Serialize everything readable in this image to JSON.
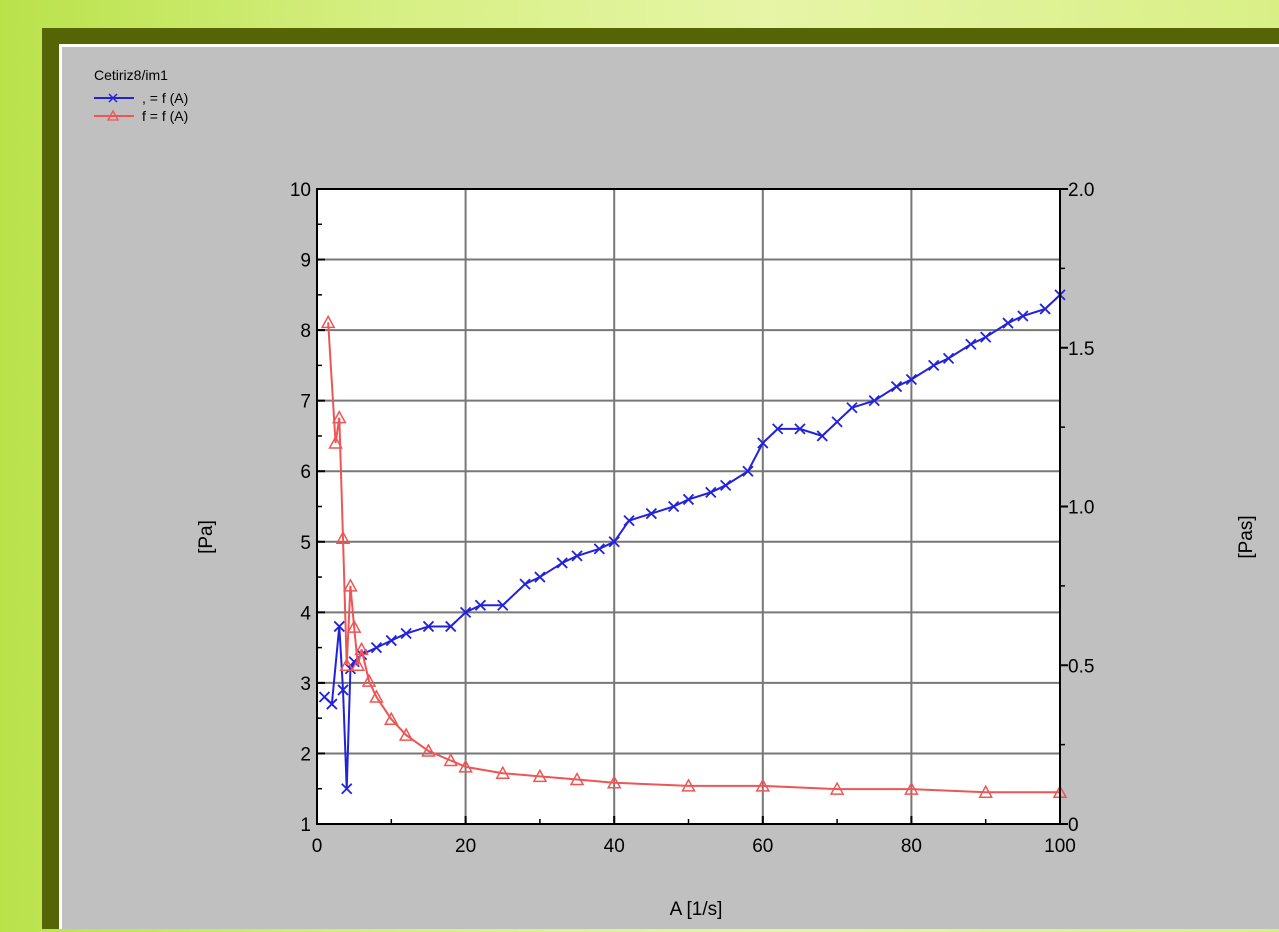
{
  "chart_data": {
    "type": "line",
    "title": "Cetiriz8/im1",
    "xlabel": "A [1/s]",
    "ylabel_left": "[Pa]",
    "ylabel_right": "[Pas]",
    "xlim": [
      0,
      100
    ],
    "ylim_left": [
      1,
      10
    ],
    "ylim_right": [
      0,
      2.0
    ],
    "x_ticks": [
      "0",
      "20",
      "40",
      "60",
      "80",
      "100"
    ],
    "y_left_ticks": [
      "1",
      "2",
      "3",
      "4",
      "5",
      "6",
      "7",
      "8",
      "9",
      "10"
    ],
    "y_right_ticks": [
      "0",
      "0.5",
      "1.0",
      "1.5",
      "2.0"
    ],
    "grid": true,
    "legend_position": "top-left",
    "series": [
      {
        "name": ", = f (A)",
        "axis": "left",
        "color": "#2222dd",
        "marker": "x",
        "x": [
          1,
          2,
          3,
          3.5,
          4,
          4.5,
          5,
          6,
          8,
          10,
          12,
          15,
          18,
          20,
          22,
          25,
          28,
          30,
          33,
          35,
          38,
          40,
          42,
          45,
          48,
          50,
          53,
          55,
          58,
          60,
          62,
          65,
          68,
          70,
          72,
          75,
          78,
          80,
          83,
          85,
          88,
          90,
          93,
          95,
          98,
          100
        ],
        "values": [
          2.8,
          2.7,
          3.8,
          2.9,
          1.5,
          3.2,
          3.3,
          3.4,
          3.5,
          3.6,
          3.7,
          3.8,
          3.8,
          4.0,
          4.1,
          4.1,
          4.4,
          4.5,
          4.7,
          4.8,
          4.9,
          5.0,
          5.3,
          5.4,
          5.5,
          5.6,
          5.7,
          5.8,
          6.0,
          6.4,
          6.6,
          6.6,
          6.5,
          6.7,
          6.9,
          7.0,
          7.2,
          7.3,
          7.5,
          7.6,
          7.8,
          7.9,
          8.1,
          8.2,
          8.3,
          8.5
        ]
      },
      {
        "name": "f = f (A)",
        "axis": "right",
        "color": "#ee5555",
        "marker": "triangle",
        "x": [
          1.5,
          2.5,
          3,
          3.5,
          4,
          4.5,
          5,
          5.5,
          6,
          7,
          8,
          10,
          12,
          15,
          18,
          20,
          25,
          30,
          35,
          40,
          50,
          60,
          70,
          80,
          90,
          100
        ],
        "values": [
          1.58,
          1.2,
          1.28,
          0.9,
          0.5,
          0.75,
          0.62,
          0.5,
          0.55,
          0.45,
          0.4,
          0.33,
          0.28,
          0.23,
          0.2,
          0.18,
          0.16,
          0.15,
          0.14,
          0.13,
          0.12,
          0.12,
          0.11,
          0.11,
          0.1,
          0.1
        ]
      }
    ]
  }
}
